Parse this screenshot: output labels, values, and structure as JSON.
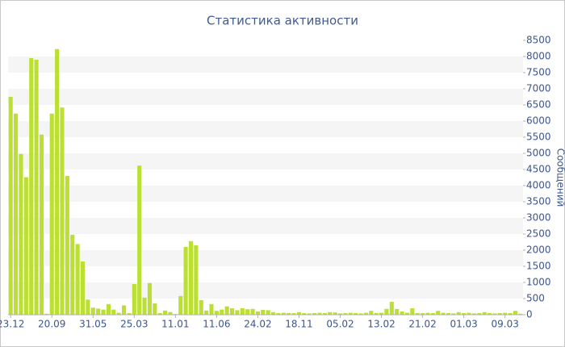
{
  "chart_data": {
    "type": "bar",
    "title": "Статистика активности",
    "y_axis_label": "Сообщений",
    "categories": [
      "23.12",
      null,
      null,
      null,
      null,
      null,
      null,
      null,
      "20.09",
      null,
      null,
      null,
      null,
      null,
      null,
      null,
      "31.05",
      null,
      null,
      null,
      null,
      null,
      null,
      null,
      "25.03",
      null,
      null,
      null,
      null,
      null,
      null,
      null,
      "11.01",
      null,
      null,
      null,
      null,
      null,
      null,
      null,
      "11.06",
      null,
      null,
      null,
      null,
      null,
      null,
      null,
      "24.02",
      null,
      null,
      null,
      null,
      null,
      null,
      null,
      "18.11",
      null,
      null,
      null,
      null,
      null,
      null,
      null,
      "05.02",
      null,
      null,
      null,
      null,
      null,
      null,
      null,
      "13.02",
      null,
      null,
      null,
      null,
      null,
      null,
      null,
      "21.02",
      null,
      null,
      null,
      null,
      null,
      null,
      null,
      "01.03",
      null,
      null,
      null,
      null,
      null,
      null,
      null,
      "09.03",
      null,
      null,
      null
    ],
    "values": [
      6750,
      6230,
      4980,
      4260,
      7950,
      7900,
      5580,
      30,
      6230,
      8230,
      6420,
      4300,
      2480,
      2190,
      1650,
      470,
      220,
      190,
      160,
      330,
      160,
      60,
      290,
      50,
      950,
      4620,
      530,
      980,
      350,
      50,
      130,
      80,
      20,
      580,
      2100,
      2280,
      2150,
      450,
      130,
      330,
      120,
      160,
      260,
      200,
      140,
      200,
      170,
      180,
      100,
      150,
      140,
      80,
      50,
      60,
      50,
      50,
      80,
      50,
      40,
      50,
      60,
      50,
      80,
      70,
      40,
      50,
      60,
      50,
      40,
      60,
      120,
      50,
      60,
      180,
      400,
      180,
      100,
      60,
      200,
      50,
      50,
      60,
      50,
      120,
      60,
      50,
      40,
      80,
      50,
      60,
      40,
      50,
      80,
      50,
      40,
      50,
      60,
      50,
      120,
      30
    ],
    "color": "#bbe033",
    "ylim": [
      0,
      8500
    ],
    "yticks": [
      0,
      500,
      1000,
      1500,
      2000,
      2500,
      3000,
      3500,
      4000,
      4500,
      5000,
      5500,
      6000,
      6500,
      7000,
      7500,
      8000,
      8500
    ],
    "grid": true
  }
}
